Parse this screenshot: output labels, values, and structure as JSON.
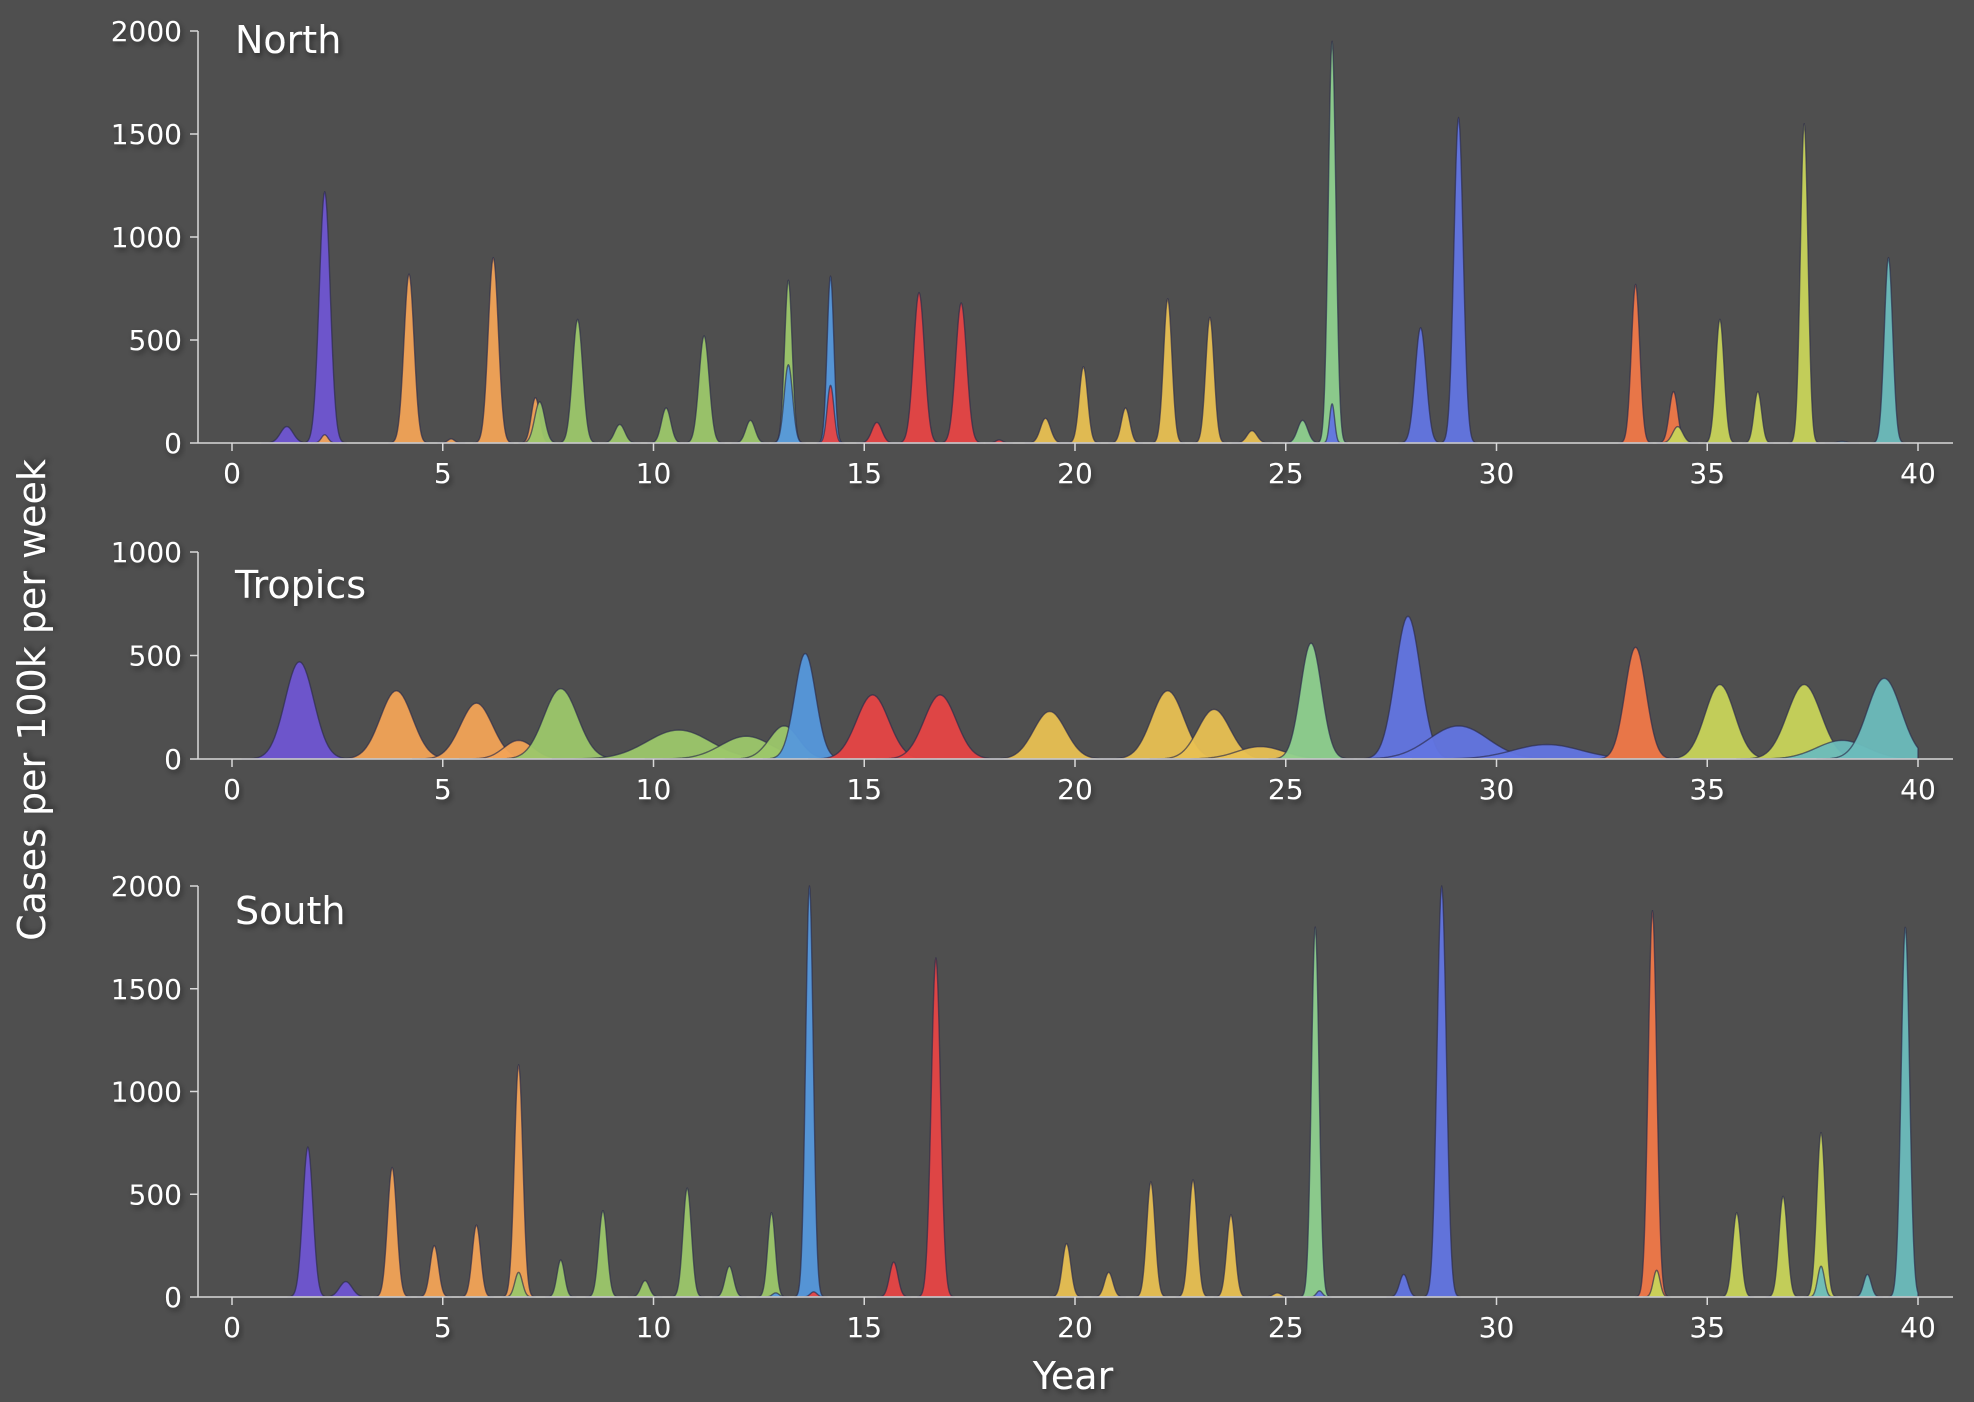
{
  "chart_data": {
    "type": "area",
    "xlabel": "Year",
    "ylabel": "Cases per 100k per week",
    "xlim": [
      0,
      40
    ],
    "xticks": [
      0,
      5,
      10,
      15,
      20,
      25,
      30,
      35,
      40
    ],
    "grid": false,
    "legend": "none",
    "panels": [
      {
        "title": "North",
        "ylim": [
          0,
          2000
        ],
        "yticks": [
          0,
          500,
          1000,
          1500,
          2000
        ],
        "series": [
          {
            "color": "#6f55d2",
            "peaks": [
              [
                1.3,
                80,
                0.15
              ],
              [
                2.2,
                1220,
                0.13
              ]
            ]
          },
          {
            "color": "#f2a356",
            "peaks": [
              [
                2.2,
                40,
                0.08
              ],
              [
                4.2,
                820,
                0.12
              ],
              [
                5.2,
                20,
                0.08
              ],
              [
                6.2,
                900,
                0.12
              ],
              [
                7.2,
                220,
                0.1
              ]
            ]
          },
          {
            "color": "#9cc76a",
            "peaks": [
              [
                7.3,
                200,
                0.12
              ],
              [
                8.2,
                600,
                0.12
              ],
              [
                9.2,
                90,
                0.12
              ],
              [
                10.3,
                170,
                0.11
              ],
              [
                11.2,
                520,
                0.12
              ],
              [
                12.3,
                110,
                0.11
              ],
              [
                13.2,
                790,
                0.09
              ]
            ]
          },
          {
            "color": "#5598dc",
            "peaks": [
              [
                13.2,
                380,
                0.1
              ],
              [
                14.2,
                810,
                0.08
              ]
            ]
          },
          {
            "color": "#e64545",
            "peaks": [
              [
                14.2,
                280,
                0.08
              ],
              [
                15.3,
                100,
                0.12
              ],
              [
                16.3,
                730,
                0.13
              ],
              [
                17.3,
                680,
                0.13
              ],
              [
                18.2,
                15,
                0.08
              ]
            ]
          },
          {
            "color": "#e8c052",
            "peaks": [
              [
                19.3,
                120,
                0.12
              ],
              [
                20.2,
                370,
                0.1
              ],
              [
                21.2,
                170,
                0.1
              ],
              [
                22.2,
                700,
                0.1
              ],
              [
                23.2,
                610,
                0.1
              ],
              [
                24.2,
                60,
                0.12
              ]
            ]
          },
          {
            "color": "#8ed08e",
            "peaks": [
              [
                25.4,
                110,
                0.12
              ],
              [
                26.1,
                1950,
                0.09
              ]
            ]
          },
          {
            "color": "#6275e2",
            "peaks": [
              [
                26.1,
                190,
                0.06
              ],
              [
                28.2,
                560,
                0.13
              ],
              [
                29.1,
                1580,
                0.11
              ]
            ]
          },
          {
            "color": "#f07848",
            "peaks": [
              [
                33.3,
                770,
                0.1
              ],
              [
                34.2,
                250,
                0.1
              ]
            ]
          },
          {
            "color": "#c8d45a",
            "peaks": [
              [
                34.3,
                80,
                0.12
              ],
              [
                35.3,
                600,
                0.1
              ],
              [
                36.2,
                250,
                0.09
              ],
              [
                37.3,
                1550,
                0.09
              ]
            ]
          },
          {
            "color": "#6cbcbc",
            "peaks": [
              [
                38.2,
                8,
                0.1
              ],
              [
                39.3,
                900,
                0.1
              ]
            ]
          }
        ]
      },
      {
        "title": "Tropics",
        "ylim": [
          0,
          1000
        ],
        "yticks": [
          0,
          500,
          1000
        ],
        "series": [
          {
            "color": "#6f55d2",
            "peaks": [
              [
                1.6,
                470,
                0.34
              ]
            ]
          },
          {
            "color": "#f2a356",
            "peaks": [
              [
                3.9,
                330,
                0.38
              ],
              [
                5.8,
                270,
                0.38
              ],
              [
                6.8,
                90,
                0.35
              ]
            ]
          },
          {
            "color": "#9cc76a",
            "peaks": [
              [
                7.8,
                340,
                0.4
              ],
              [
                10.6,
                140,
                0.75
              ],
              [
                12.2,
                110,
                0.6
              ],
              [
                13.1,
                160,
                0.35
              ]
            ]
          },
          {
            "color": "#5598dc",
            "peaks": [
              [
                13.6,
                510,
                0.25
              ]
            ]
          },
          {
            "color": "#e64545",
            "peaks": [
              [
                15.2,
                310,
                0.38
              ],
              [
                16.8,
                310,
                0.38
              ]
            ]
          },
          {
            "color": "#e8c052",
            "peaks": [
              [
                19.4,
                230,
                0.38
              ],
              [
                22.2,
                330,
                0.38
              ],
              [
                23.3,
                240,
                0.38
              ],
              [
                24.4,
                60,
                0.55
              ]
            ]
          },
          {
            "color": "#8ed08e",
            "peaks": [
              [
                25.6,
                560,
                0.25
              ]
            ]
          },
          {
            "color": "#6275e2",
            "peaks": [
              [
                27.9,
                690,
                0.3
              ],
              [
                29.1,
                160,
                0.7
              ],
              [
                31.2,
                70,
                0.8
              ]
            ]
          },
          {
            "color": "#f07848",
            "peaks": [
              [
                33.3,
                540,
                0.25
              ]
            ]
          },
          {
            "color": "#c8d45a",
            "peaks": [
              [
                35.3,
                360,
                0.35
              ],
              [
                37.3,
                360,
                0.4
              ]
            ]
          },
          {
            "color": "#6cbcbc",
            "peaks": [
              [
                38.2,
                90,
                0.6
              ],
              [
                39.2,
                390,
                0.4
              ]
            ]
          }
        ]
      },
      {
        "title": "South",
        "ylim": [
          0,
          2000
        ],
        "yticks": [
          0,
          500,
          1000,
          1500,
          2000
        ],
        "series": [
          {
            "color": "#6f55d2",
            "peaks": [
              [
                1.8,
                730,
                0.12
              ],
              [
                2.7,
                75,
                0.15
              ]
            ]
          },
          {
            "color": "#f2a356",
            "peaks": [
              [
                3.8,
                630,
                0.11
              ],
              [
                4.8,
                250,
                0.1
              ],
              [
                5.8,
                350,
                0.1
              ],
              [
                6.8,
                1130,
                0.1
              ]
            ]
          },
          {
            "color": "#9cc76a",
            "peaks": [
              [
                6.8,
                120,
                0.09
              ],
              [
                7.8,
                180,
                0.09
              ],
              [
                8.8,
                420,
                0.1
              ],
              [
                9.8,
                80,
                0.1
              ],
              [
                10.8,
                530,
                0.1
              ],
              [
                11.8,
                150,
                0.1
              ],
              [
                12.8,
                410,
                0.09
              ]
            ]
          },
          {
            "color": "#5598dc",
            "peaks": [
              [
                12.9,
                20,
                0.08
              ],
              [
                13.7,
                2000,
                0.09
              ]
            ]
          },
          {
            "color": "#e64545",
            "peaks": [
              [
                13.8,
                25,
                0.08
              ],
              [
                15.7,
                170,
                0.1
              ],
              [
                16.7,
                1650,
                0.11
              ]
            ]
          },
          {
            "color": "#e8c052",
            "peaks": [
              [
                19.8,
                260,
                0.1
              ],
              [
                20.8,
                120,
                0.1
              ],
              [
                21.8,
                560,
                0.1
              ],
              [
                22.8,
                570,
                0.1
              ],
              [
                23.7,
                400,
                0.1
              ],
              [
                24.8,
                20,
                0.1
              ]
            ]
          },
          {
            "color": "#8ed08e",
            "peaks": [
              [
                25.7,
                1800,
                0.09
              ]
            ]
          },
          {
            "color": "#6275e2",
            "peaks": [
              [
                25.8,
                30,
                0.07
              ],
              [
                27.8,
                110,
                0.1
              ],
              [
                28.7,
                2000,
                0.11
              ]
            ]
          },
          {
            "color": "#f07848",
            "peaks": [
              [
                33.7,
                1880,
                0.1
              ]
            ]
          },
          {
            "color": "#c8d45a",
            "peaks": [
              [
                33.8,
                130,
                0.08
              ],
              [
                35.7,
                410,
                0.1
              ],
              [
                36.8,
                490,
                0.1
              ],
              [
                37.7,
                800,
                0.1
              ]
            ]
          },
          {
            "color": "#6cbcbc",
            "peaks": [
              [
                37.7,
                150,
                0.08
              ],
              [
                38.8,
                110,
                0.09
              ],
              [
                39.7,
                1800,
                0.1
              ]
            ]
          }
        ]
      }
    ]
  }
}
